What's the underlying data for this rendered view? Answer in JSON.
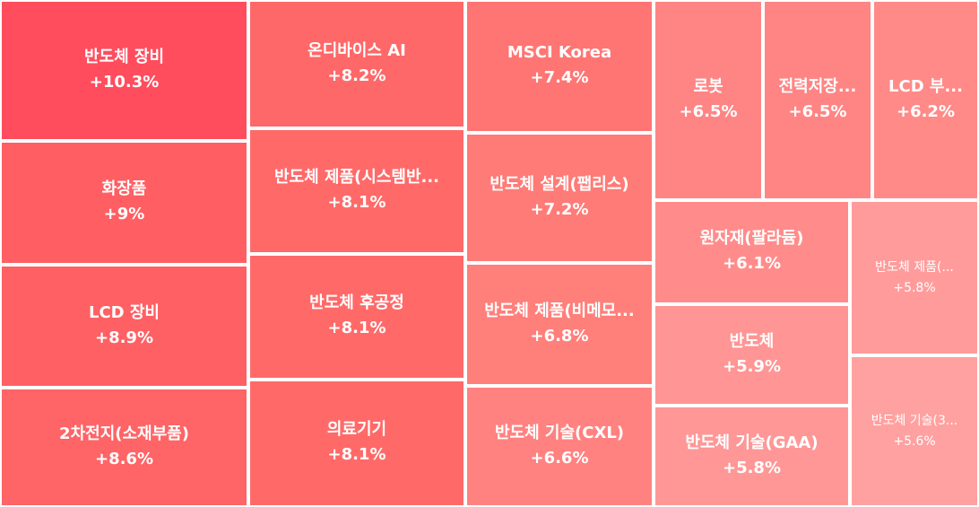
{
  "chart_data": {
    "type": "treemap",
    "items": [
      {
        "name": "반도체 장비",
        "value": 10.3,
        "label": "+10.3%",
        "color": "#ff4d5e"
      },
      {
        "name": "화장품",
        "value": 9.0,
        "label": "+9%",
        "color": "#ff5f63"
      },
      {
        "name": "LCD 장비",
        "value": 8.9,
        "label": "+8.9%",
        "color": "#ff6064"
      },
      {
        "name": "2차전지(소재부품)",
        "value": 8.6,
        "label": "+8.6%",
        "color": "#ff6466"
      },
      {
        "name": "온디바이스 AI",
        "value": 8.2,
        "label": "+8.2%",
        "color": "#ff6868"
      },
      {
        "name": "반도체 제품(시스템반...",
        "value": 8.1,
        "label": "+8.1%",
        "color": "#ff6a69"
      },
      {
        "name": "반도체 후공정",
        "value": 8.1,
        "label": "+8.1%",
        "color": "#ff6a69"
      },
      {
        "name": "의료기기",
        "value": 8.1,
        "label": "+8.1%",
        "color": "#ff6a69"
      },
      {
        "name": "MSCI Korea",
        "value": 7.4,
        "label": "+7.4%",
        "color": "#ff7573"
      },
      {
        "name": "반도체 설계(팹리스)",
        "value": 7.2,
        "label": "+7.2%",
        "color": "#ff7b77"
      },
      {
        "name": "반도체 제품(비메모...",
        "value": 6.8,
        "label": "+6.8%",
        "color": "#ff7f7b"
      },
      {
        "name": "반도체 기술(CXL)",
        "value": 6.6,
        "label": "+6.6%",
        "color": "#ff8280"
      },
      {
        "name": "로봇",
        "value": 6.5,
        "label": "+6.5%",
        "color": "#ff8584"
      },
      {
        "name": "전력저장...",
        "value": 6.5,
        "label": "+6.5%",
        "color": "#ff8584"
      },
      {
        "name": "LCD 부...",
        "value": 6.2,
        "label": "+6.2%",
        "color": "#ff8a88"
      },
      {
        "name": "원자재(팔라듐)",
        "value": 6.1,
        "label": "+6.1%",
        "color": "#ff8c8b"
      },
      {
        "name": "반도체",
        "value": 5.9,
        "label": "+5.9%",
        "color": "#ff9594"
      },
      {
        "name": "반도체 기술(GAA)",
        "value": 5.8,
        "label": "+5.8%",
        "color": "#ff9797"
      },
      {
        "name": "반도체 제품(...",
        "value": 5.8,
        "label": "+5.8%",
        "color": "#ff9c9b"
      },
      {
        "name": "반도체 기술(3...",
        "value": 5.6,
        "label": "+5.6%",
        "color": "#ffa1a0"
      }
    ]
  }
}
